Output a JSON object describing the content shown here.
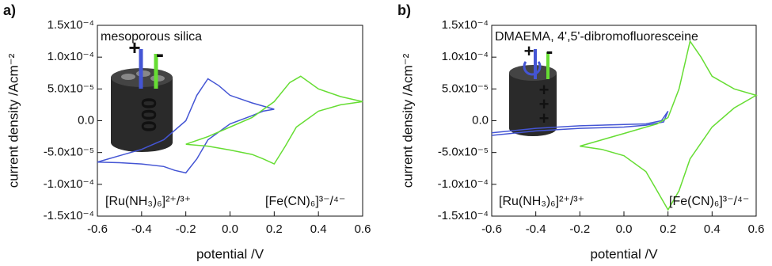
{
  "chart_data": [
    {
      "type": "line",
      "panel_label": "a)",
      "annotation": "mesoporous silica",
      "xlabel": "potential /V",
      "ylabel": "current density /Acm⁻²",
      "xlim": [
        -0.6,
        0.6
      ],
      "xticks": [
        -0.6,
        -0.4,
        -0.2,
        {
          "value": 0,
          "label": "0.0"
        },
        0.2,
        0.4,
        0.6
      ],
      "ylim": [
        -0.00015,
        0.00015
      ],
      "yticks": [
        {
          "value": -0.00015,
          "label": "-1.5x10⁻⁴"
        },
        {
          "value": -0.0001,
          "label": "-1.0x10⁻⁴"
        },
        {
          "value": -5e-05,
          "label": "-5.0x10⁻⁵"
        },
        {
          "value": 0,
          "label": "0.0"
        },
        {
          "value": 5e-05,
          "label": "5.0x10⁻⁵"
        },
        {
          "value": 0.0001,
          "label": "1.0x10⁻⁴"
        },
        {
          "value": 0.00015,
          "label": "1.5x10⁻⁴"
        }
      ],
      "icon_labels": [
        "+",
        "-",
        "000"
      ],
      "series": [
        {
          "name": "[Ru(NH₃)₆]²⁺/³⁺",
          "color": "#4455d4",
          "x": [
            -0.6,
            -0.5,
            -0.4,
            -0.3,
            -0.2,
            -0.15,
            -0.1,
            -0.05,
            0,
            0.1,
            0.2,
            0.15,
            0.1,
            0,
            -0.1,
            -0.15,
            -0.2,
            -0.25,
            -0.3,
            -0.4,
            -0.5,
            -0.6
          ],
          "values": [
            -6.5e-05,
            -5.5e-05,
            -4.5e-05,
            -3e-05,
            0,
            4e-05,
            6.6e-05,
            5.5e-05,
            4e-05,
            2.8e-05,
            1.8e-05,
            1.5e-05,
            8e-06,
            -5e-06,
            -3e-05,
            -6e-05,
            -8.2e-05,
            -7.8e-05,
            -7.2e-05,
            -6.8e-05,
            -6.6e-05,
            -6.5e-05
          ]
        },
        {
          "name": "[Fe(CN)₆]³⁻/⁴⁻",
          "color": "#66dd33",
          "x": [
            -0.2,
            -0.1,
            0,
            0.1,
            0.2,
            0.27,
            0.32,
            0.4,
            0.5,
            0.6,
            0.5,
            0.4,
            0.3,
            0.25,
            0.2,
            0.15,
            0.1,
            0,
            -0.1,
            -0.2
          ],
          "values": [
            -3.7e-05,
            -2.5e-05,
            -1e-05,
            5e-06,
            3e-05,
            6e-05,
            7e-05,
            5e-05,
            3.8e-05,
            3e-05,
            2.5e-05,
            1.5e-05,
            -1e-05,
            -4e-05,
            -6.8e-05,
            -6e-05,
            -5.3e-05,
            -4.6e-05,
            -4e-05,
            -3.7e-05
          ]
        }
      ]
    },
    {
      "type": "line",
      "panel_label": "b)",
      "annotation": "DMAEMA, 4',5'-dibromofluoresceine",
      "xlabel": "potential /V",
      "ylabel": "current density /Acm⁻²",
      "xlim": [
        -0.6,
        0.6
      ],
      "xticks": [
        -0.6,
        -0.4,
        -0.2,
        {
          "value": 0,
          "label": "0.0"
        },
        0.2,
        0.4,
        0.6
      ],
      "ylim": [
        -0.00015,
        0.00015
      ],
      "yticks": [
        {
          "value": -0.00015,
          "label": "-1.5x10⁻⁴"
        },
        {
          "value": -0.0001,
          "label": "-1.0x10⁻⁴"
        },
        {
          "value": -5e-05,
          "label": "-5.0x10⁻⁵"
        },
        {
          "value": 0,
          "label": "0.0"
        },
        {
          "value": 5e-05,
          "label": "5.0x10⁻⁵"
        },
        {
          "value": 0.0001,
          "label": "1.0x10⁻⁴"
        },
        {
          "value": 0.00015,
          "label": "1.5x10⁻⁴"
        }
      ],
      "icon_labels": [
        "+",
        "-",
        "+",
        "+",
        "+"
      ],
      "series": [
        {
          "name": "[Ru(NH₃)₆]²⁺/³⁺",
          "color": "#4455d4",
          "x": [
            -0.6,
            -0.4,
            -0.2,
            0,
            0.1,
            0.17,
            0.2,
            0.18,
            0.1,
            0,
            -0.2,
            -0.4,
            -0.6
          ],
          "values": [
            -1.9e-05,
            -1.2e-05,
            -8e-06,
            -6e-06,
            -5e-06,
            0,
            1.5e-05,
            -2e-06,
            -7e-06,
            -1e-05,
            -1.2e-05,
            -1.6e-05,
            -2.3e-05
          ]
        },
        {
          "name": "[Fe(CN)₆]³⁻/⁴⁻",
          "color": "#66dd33",
          "x": [
            -0.2,
            -0.1,
            0,
            0.1,
            0.15,
            0.2,
            0.25,
            0.3,
            0.35,
            0.4,
            0.5,
            0.6,
            0.5,
            0.4,
            0.3,
            0.25,
            0.2,
            0.15,
            0.1,
            0,
            -0.1,
            -0.2
          ],
          "values": [
            -4e-05,
            -3e-05,
            -2e-05,
            -1e-05,
            -5e-06,
            5e-06,
            5e-05,
            0.000125,
            0.0001,
            7e-05,
            5e-05,
            4e-05,
            2e-05,
            -1e-05,
            -6e-05,
            -0.00011,
            -0.00014,
            -0.00011,
            -8e-05,
            -5.5e-05,
            -4.5e-05,
            -4e-05
          ]
        }
      ]
    }
  ]
}
